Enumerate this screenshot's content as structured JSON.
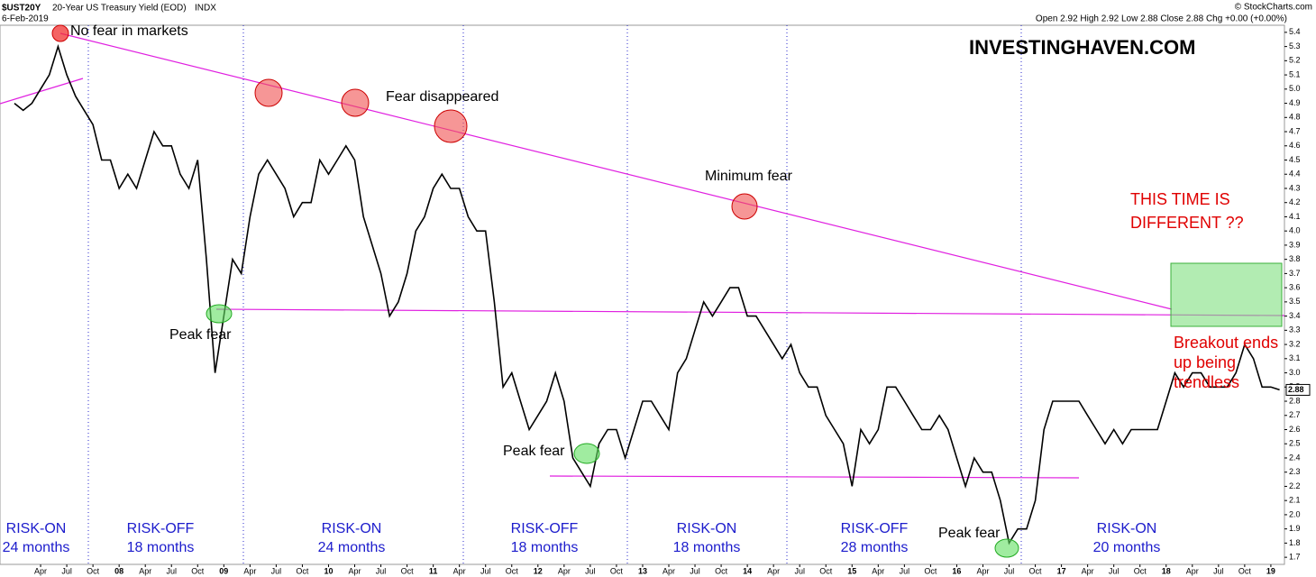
{
  "chart_data": {
    "type": "line",
    "title": "$UST20Y",
    "subtitle": "20-Year US Treasury Yield (EOD)",
    "exchange": "INDX",
    "date": "6-Feb-2019",
    "quote": "Open 2.92 High 2.92 Low 2.88 Close 2.88 Chg +0.00 (+0.00%)",
    "source": "© StockCharts.com",
    "watermark": "INVESTINGHAVEN.COM",
    "color": "#000000",
    "last_value": {
      "value": 2.88,
      "label": "2.88"
    },
    "categories": [
      null,
      null,
      null,
      "Apr",
      null,
      null,
      "Jul",
      null,
      null,
      "Oct",
      null,
      null,
      "08",
      null,
      null,
      "Apr",
      null,
      null,
      "Jul",
      null,
      null,
      "Oct",
      null,
      null,
      "09",
      null,
      null,
      "Apr",
      null,
      null,
      "Jul",
      null,
      null,
      "Oct",
      null,
      null,
      "10",
      null,
      null,
      "Apr",
      null,
      null,
      "Jul",
      null,
      null,
      "Oct",
      null,
      null,
      "11",
      null,
      null,
      "Apr",
      null,
      null,
      "Jul",
      null,
      null,
      "Oct",
      null,
      null,
      "12",
      null,
      null,
      "Apr",
      null,
      null,
      "Jul",
      null,
      null,
      "Oct",
      null,
      null,
      "13",
      null,
      null,
      "Apr",
      null,
      null,
      "Jul",
      null,
      null,
      "Oct",
      null,
      null,
      "14",
      null,
      null,
      "Apr",
      null,
      null,
      "Jul",
      null,
      null,
      "Oct",
      null,
      null,
      "15",
      null,
      null,
      "Apr",
      null,
      null,
      "Jul",
      null,
      null,
      "Oct",
      null,
      null,
      "16",
      null,
      null,
      "Apr",
      null,
      null,
      "Jul",
      null,
      null,
      "Oct",
      null,
      null,
      "17",
      null,
      null,
      "Apr",
      null,
      null,
      "Jul",
      null,
      null,
      "Oct",
      null,
      null,
      "18",
      null,
      null,
      "Apr",
      null,
      null,
      "Jul",
      null,
      null,
      "Oct",
      null,
      null,
      "19",
      null
    ],
    "values": [
      4.9,
      4.85,
      4.9,
      5.0,
      5.1,
      5.3,
      5.1,
      4.95,
      4.85,
      4.75,
      4.5,
      4.5,
      4.3,
      4.4,
      4.3,
      4.5,
      4.7,
      4.6,
      4.6,
      4.4,
      4.3,
      4.5,
      3.8,
      3.0,
      3.4,
      3.8,
      3.7,
      4.1,
      4.4,
      4.5,
      4.4,
      4.3,
      4.1,
      4.2,
      4.2,
      4.5,
      4.4,
      4.5,
      4.6,
      4.5,
      4.1,
      3.9,
      3.7,
      3.4,
      3.5,
      3.7,
      4.0,
      4.1,
      4.3,
      4.4,
      4.3,
      4.3,
      4.1,
      4.0,
      4.0,
      3.5,
      2.9,
      3.0,
      2.8,
      2.6,
      2.7,
      2.8,
      3.0,
      2.8,
      2.4,
      2.3,
      2.2,
      2.5,
      2.6,
      2.6,
      2.4,
      2.6,
      2.8,
      2.8,
      2.7,
      2.6,
      3.0,
      3.1,
      3.3,
      3.5,
      3.4,
      3.5,
      3.6,
      3.6,
      3.4,
      3.4,
      3.3,
      3.2,
      3.1,
      3.2,
      3.0,
      2.9,
      2.9,
      2.7,
      2.6,
      2.5,
      2.2,
      2.6,
      2.5,
      2.6,
      2.9,
      2.9,
      2.8,
      2.7,
      2.6,
      2.6,
      2.7,
      2.6,
      2.4,
      2.2,
      2.4,
      2.3,
      2.3,
      2.1,
      1.8,
      1.9,
      1.9,
      2.1,
      2.6,
      2.8,
      2.8,
      2.8,
      2.8,
      2.7,
      2.6,
      2.5,
      2.6,
      2.5,
      2.6,
      2.6,
      2.6,
      2.6,
      2.8,
      3.0,
      2.9,
      3.0,
      3.0,
      2.9,
      2.9,
      2.9,
      3.0,
      3.2,
      3.1,
      2.9,
      2.9,
      2.88
    ],
    "ylim": [
      1.65,
      5.45
    ],
    "yticks": [
      1.7,
      1.8,
      1.9,
      {
        "value": 2,
        "label": "2.0"
      },
      2.1,
      2.2,
      2.3,
      2.4,
      2.5,
      2.6,
      2.7,
      2.8,
      2.9,
      {
        "value": 3,
        "label": "3.0"
      },
      3.1,
      3.2,
      3.3,
      3.4,
      3.5,
      3.6,
      3.7,
      3.8,
      3.9,
      {
        "value": 4,
        "label": "4.0"
      },
      4.1,
      4.2,
      4.3,
      4.4,
      4.5,
      4.6,
      4.7,
      4.8,
      4.9,
      {
        "value": 5,
        "label": "5.0"
      },
      5.1,
      5.2,
      5.3,
      5.4
    ],
    "annotations": [
      "No fear in markets",
      "Fear disappeared",
      "Minimum fear",
      "Peak fear",
      "Peak fear",
      "Peak fear",
      "THIS TIME IS",
      "DIFFERENT ??",
      "Breakout ends",
      "up being",
      "trendless"
    ],
    "regimes": [
      {
        "label": "RISK-ON",
        "duration": "24 months"
      },
      {
        "label": "RISK-OFF",
        "duration": "18 months"
      },
      {
        "label": "RISK-ON",
        "duration": "24 months"
      },
      {
        "label": "RISK-OFF",
        "duration": "18 months"
      },
      {
        "label": "RISK-ON",
        "duration": "18 months"
      },
      {
        "label": "RISK-OFF",
        "duration": "28 months"
      },
      {
        "label": "RISK-ON",
        "duration": "20 months"
      }
    ]
  }
}
